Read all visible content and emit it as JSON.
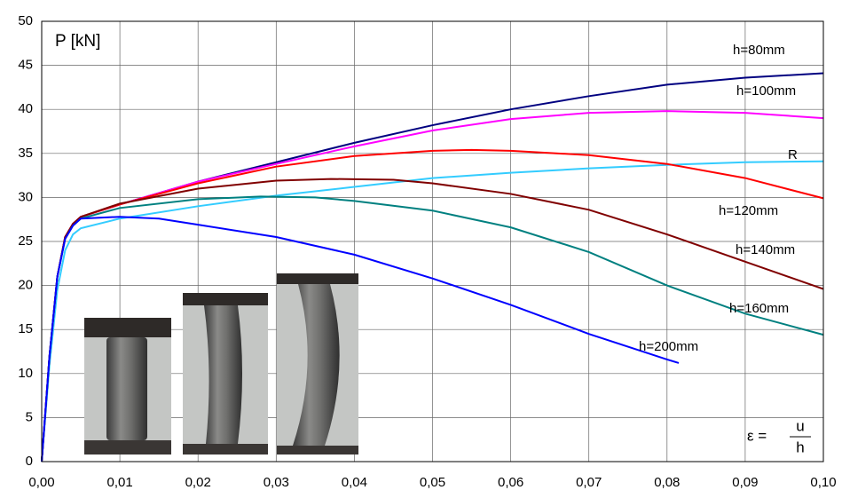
{
  "chart_data": {
    "type": "line",
    "y_label": "P [kN]",
    "x_label": {
      "text": "ε =",
      "numerator": "u",
      "denominator": "h"
    },
    "xlim": [
      0,
      0.1
    ],
    "ylim": [
      0,
      50
    ],
    "xticks": [
      {
        "value": 0,
        "label": "0,00"
      },
      {
        "value": 0.01,
        "label": "0,01"
      },
      {
        "value": 0.02,
        "label": "0,02"
      },
      {
        "value": 0.03,
        "label": "0,03"
      },
      {
        "value": 0.04,
        "label": "0,04"
      },
      {
        "value": 0.05,
        "label": "0,05"
      },
      {
        "value": 0.06,
        "label": "0,06"
      },
      {
        "value": 0.07,
        "label": "0,07"
      },
      {
        "value": 0.08,
        "label": "0,08"
      },
      {
        "value": 0.09,
        "label": "0,09"
      },
      {
        "value": 0.1,
        "label": "0,10"
      }
    ],
    "yticks": [
      0,
      5,
      10,
      15,
      20,
      25,
      30,
      35,
      40,
      45,
      50
    ],
    "grid": true,
    "series": [
      {
        "name": "h=80mm",
        "color": "#000080",
        "x": [
          0,
          0.001,
          0.002,
          0.003,
          0.004,
          0.005,
          0.01,
          0.02,
          0.03,
          0.04,
          0.05,
          0.06,
          0.07,
          0.08,
          0.09,
          0.1
        ],
        "values": [
          0,
          12,
          21,
          25.5,
          27,
          27.8,
          29.2,
          31.8,
          34,
          36.2,
          38.2,
          40,
          41.5,
          42.8,
          43.6,
          44.1
        ]
      },
      {
        "name": "h=100mm",
        "color": "#ff00ff",
        "x": [
          0,
          0.001,
          0.002,
          0.003,
          0.004,
          0.005,
          0.01,
          0.02,
          0.03,
          0.04,
          0.05,
          0.06,
          0.07,
          0.08,
          0.09,
          0.1
        ],
        "values": [
          0,
          12,
          21,
          25.5,
          27,
          27.8,
          29.2,
          31.8,
          33.8,
          35.8,
          37.6,
          38.9,
          39.6,
          39.8,
          39.6,
          39
        ]
      },
      {
        "name": "R",
        "color": "#33ccff",
        "x": [
          0,
          0.001,
          0.002,
          0.003,
          0.004,
          0.005,
          0.01,
          0.02,
          0.03,
          0.04,
          0.05,
          0.06,
          0.07,
          0.08,
          0.09,
          0.1
        ],
        "values": [
          0,
          11,
          19.5,
          24,
          25.8,
          26.5,
          27.6,
          29,
          30.2,
          31.2,
          32.2,
          32.8,
          33.3,
          33.7,
          34,
          34.1
        ]
      },
      {
        "name": "h=120mm",
        "color": "#ff0000",
        "x": [
          0,
          0.001,
          0.002,
          0.003,
          0.004,
          0.005,
          0.01,
          0.02,
          0.03,
          0.04,
          0.05,
          0.055,
          0.06,
          0.07,
          0.08,
          0.09,
          0.1
        ],
        "values": [
          0,
          12,
          21,
          25.5,
          27,
          27.8,
          29.2,
          31.6,
          33.5,
          34.7,
          35.3,
          35.4,
          35.3,
          34.8,
          33.8,
          32.2,
          29.9
        ]
      },
      {
        "name": "h=140mm",
        "color": "#800000",
        "x": [
          0,
          0.001,
          0.002,
          0.003,
          0.004,
          0.005,
          0.01,
          0.02,
          0.03,
          0.037,
          0.045,
          0.05,
          0.06,
          0.07,
          0.08,
          0.09,
          0.1
        ],
        "values": [
          0,
          12,
          21,
          25.5,
          27,
          27.8,
          29.3,
          31,
          31.9,
          32.1,
          32,
          31.6,
          30.4,
          28.6,
          25.8,
          22.7,
          19.6
        ]
      },
      {
        "name": "h=160mm",
        "color": "#008080",
        "x": [
          0,
          0.001,
          0.002,
          0.003,
          0.004,
          0.005,
          0.01,
          0.02,
          0.028,
          0.035,
          0.04,
          0.05,
          0.06,
          0.07,
          0.08,
          0.09,
          0.1
        ],
        "values": [
          0,
          12,
          21,
          25.3,
          26.8,
          27.6,
          28.8,
          29.8,
          30.1,
          30,
          29.6,
          28.5,
          26.6,
          23.8,
          20,
          16.8,
          14.4
        ]
      },
      {
        "name": "h=200mm",
        "color": "#0000ff",
        "x": [
          0,
          0.001,
          0.002,
          0.003,
          0.004,
          0.005,
          0.01,
          0.015,
          0.02,
          0.03,
          0.04,
          0.05,
          0.06,
          0.07,
          0.08,
          0.0815
        ],
        "values": [
          0,
          12,
          21,
          25.3,
          26.8,
          27.6,
          27.8,
          27.6,
          26.9,
          25.5,
          23.5,
          20.8,
          17.8,
          14.5,
          11.6,
          11.2
        ]
      }
    ]
  }
}
